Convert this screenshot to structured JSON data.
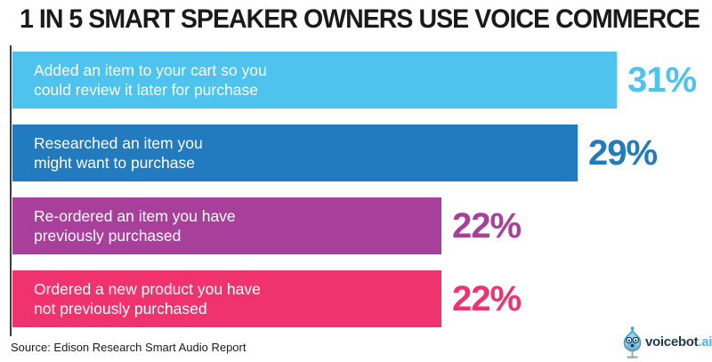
{
  "title": "1 IN 5 SMART SPEAKER OWNERS USE VOICE COMMERCE",
  "source_note": "Source: Edison Research Smart Audio Report",
  "logo": {
    "name": "voicebot",
    "suffix": ".ai",
    "tm": "™",
    "icon": "voicebot-robot-icon",
    "name_color": "#22394a",
    "suffix_color": "#54b4e4"
  },
  "chart_data": {
    "type": "bar",
    "orientation": "horizontal",
    "title": "1 IN 5 SMART SPEAKER OWNERS USE VOICE COMMERCE",
    "unit": "%",
    "xlim": [
      0,
      36
    ],
    "grid": false,
    "legend": false,
    "categories": [
      "Added an item to your cart so you could review it later for purchase",
      "Researched an item you might want to purchase",
      "Re-ordered an item you have previously purchased",
      "Ordered a new product you have not previously purchased"
    ],
    "label_lines": [
      [
        "Added an item to your cart so you",
        "could review it later for purchase"
      ],
      [
        "Researched an item you",
        "might want to purchase"
      ],
      [
        "Re-ordered an item you have",
        "previously purchased"
      ],
      [
        "Ordered a new product you have",
        "not previously purchased"
      ]
    ],
    "values": [
      31,
      29,
      22,
      22
    ],
    "value_labels": [
      "31%",
      "29%",
      "22%",
      "22%"
    ],
    "bar_colors": [
      "#4EC3EE",
      "#227ABF",
      "#A8409B",
      "#F0336F"
    ],
    "label_text_color": "#ffffff"
  }
}
